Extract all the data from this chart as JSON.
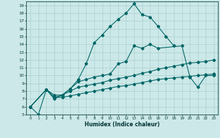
{
  "xlabel": "Humidex (Indice chaleur)",
  "xlim": [
    -0.5,
    23.5
  ],
  "ylim": [
    5,
    19.5
  ],
  "bg_color": "#cce8e8",
  "grid_color": "#aacfcf",
  "line_color": "#006666",
  "line1_x": [
    0,
    1,
    2,
    3,
    4,
    5,
    6,
    7,
    8,
    9,
    10,
    11,
    12,
    13,
    14,
    15,
    16,
    17,
    18
  ],
  "line1_y": [
    6,
    5,
    8.2,
    7.0,
    7.5,
    8.3,
    9.5,
    11.5,
    14.2,
    15.2,
    16.3,
    17.2,
    18.0,
    19.2,
    17.8,
    17.5,
    16.3,
    15.0,
    13.8
  ],
  "line2_x": [
    0,
    2,
    3,
    4,
    5,
    6,
    7,
    8,
    9,
    10,
    11,
    12,
    13,
    14,
    15,
    16,
    19,
    20,
    21,
    22,
    23
  ],
  "line2_y": [
    6.0,
    8.2,
    7.5,
    7.5,
    8.3,
    9.2,
    9.5,
    9.8,
    10.0,
    10.2,
    11.5,
    11.8,
    13.8,
    13.5,
    14.0,
    13.5,
    13.8,
    9.8,
    8.5,
    10.0,
    10.0
  ],
  "line3_x": [
    0,
    2,
    3,
    4,
    5,
    6,
    7,
    8,
    9,
    10,
    11,
    12,
    13,
    14,
    15,
    16,
    17,
    18,
    19,
    20,
    21,
    22,
    23
  ],
  "line3_y": [
    6.0,
    8.2,
    7.2,
    7.5,
    8.0,
    8.5,
    8.7,
    8.9,
    9.1,
    9.4,
    9.6,
    9.8,
    10.0,
    10.3,
    10.5,
    10.8,
    11.0,
    11.2,
    11.4,
    11.6,
    11.7,
    11.8,
    12.0
  ],
  "line4_x": [
    0,
    2,
    3,
    4,
    5,
    6,
    7,
    8,
    9,
    10,
    11,
    12,
    13,
    14,
    15,
    16,
    17,
    18,
    19,
    20,
    21,
    22,
    23
  ],
  "line4_y": [
    6.0,
    8.2,
    7.2,
    7.2,
    7.4,
    7.6,
    7.8,
    8.0,
    8.2,
    8.4,
    8.6,
    8.7,
    8.9,
    9.1,
    9.3,
    9.5,
    9.6,
    9.7,
    9.8,
    9.9,
    10.0,
    10.1,
    10.2
  ]
}
